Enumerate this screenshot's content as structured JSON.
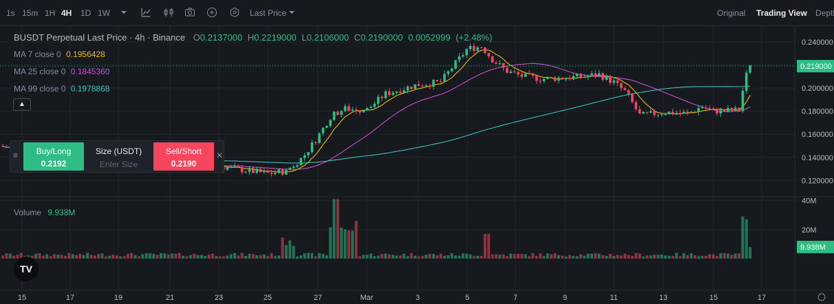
{
  "toolbar": {
    "timeframes": [
      "1s",
      "15m",
      "1H",
      "4H",
      "1D",
      "1W"
    ],
    "active_timeframe": "4H",
    "price_type": "Last Price",
    "views": [
      "Original",
      "Trading View",
      "Depth"
    ],
    "active_view": "Trading View"
  },
  "legend": {
    "title": "BUSDT Perpetual Last Price · 4h · Binance",
    "o_label": "O",
    "o": "0.2137000",
    "h_label": "H",
    "h": "0.2219000",
    "l_label": "L",
    "l": "0.2106000",
    "c_label": "C",
    "c": "0.2190000",
    "change": "0.0052999",
    "change_pct": "(+2.48%)",
    "ma7_label": "MA 7 close 0",
    "ma7": "0.1956428",
    "ma25_label": "MA 25 close 0",
    "ma25": "0.1845360",
    "ma99_label": "MA 99 close 0",
    "ma99": "0.1978868"
  },
  "trade": {
    "buy_label": "Buy/Long",
    "buy_price": "0.2192",
    "size_label": "Size (USDT)",
    "size_placeholder": "Enter Size",
    "sell_label": "Sell/Short",
    "sell_price": "0.2190"
  },
  "volume": {
    "label": "Volume",
    "value": "9.938M"
  },
  "logo_text": "TV",
  "colors": {
    "up": "#2ebd85",
    "down": "#f6465d",
    "ma7": "#f0b90b",
    "ma25": "#c94fd0",
    "ma99": "#3cc0c0",
    "last_price_bg": "#2ebd85"
  },
  "chart_data": {
    "type": "candlestick",
    "price_axis": {
      "ticks": [
        "0.240000",
        "0.220000",
        "0.200000",
        "0.180000",
        "0.160000",
        "0.140000",
        "0.120000"
      ],
      "ylim": [
        0.1095,
        0.2465
      ],
      "last_price": "0.219000"
    },
    "volume_axis": {
      "ticks": [
        "40M",
        "20M"
      ],
      "last_volume": "9.938M",
      "ylim": [
        0,
        55
      ]
    },
    "x_ticks": [
      "15",
      "17",
      "19",
      "21",
      "23",
      "25",
      "27",
      "Mar",
      "3",
      "5",
      "7",
      "9",
      "11",
      "13",
      "15",
      "17"
    ],
    "key_points": [
      {
        "label": "Feb 21",
        "close": 0.133
      },
      {
        "label": "Feb 25",
        "close": 0.126
      },
      {
        "label": "Feb 27",
        "close": 0.158
      },
      {
        "label": "Feb 28",
        "close": 0.182
      },
      {
        "label": "Mar 2",
        "close": 0.19
      },
      {
        "label": "Mar 4",
        "close": 0.205
      },
      {
        "label": "Mar 5",
        "close": 0.236
      },
      {
        "label": "Mar 6",
        "close": 0.223
      },
      {
        "label": "Mar 8",
        "close": 0.209
      },
      {
        "label": "Mar 10",
        "close": 0.211
      },
      {
        "label": "Mar 11",
        "close": 0.203
      },
      {
        "label": "Mar 12",
        "close": 0.175
      },
      {
        "label": "Mar 14",
        "close": 0.178
      },
      {
        "label": "Mar 15",
        "close": 0.18
      },
      {
        "label": "Mar 16",
        "close": 0.219
      }
    ]
  }
}
